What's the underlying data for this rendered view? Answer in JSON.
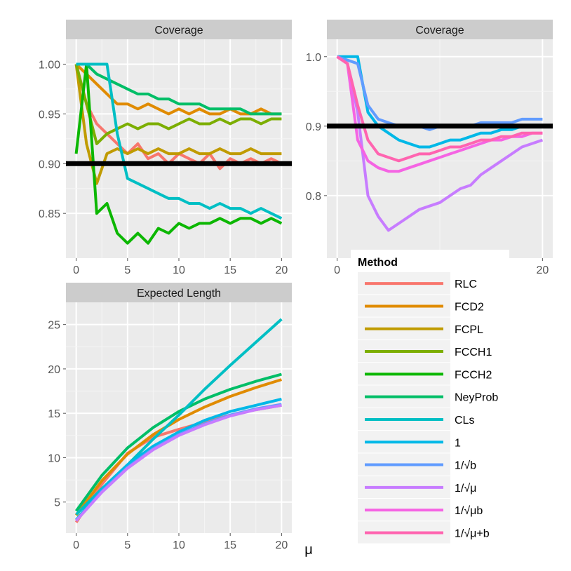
{
  "chart_data": [
    {
      "panel": "top-left",
      "type": "line",
      "title": "Coverage",
      "xlabel": "",
      "ylabel": "",
      "xlim": [
        -1,
        21
      ],
      "ylim": [
        0.805,
        1.025
      ],
      "xticks": [
        0,
        5,
        10,
        15,
        20
      ],
      "xtick_labels": [
        "0",
        "5",
        "10",
        "15",
        "20"
      ],
      "yticks": [
        0.85,
        0.9,
        0.95,
        1.0
      ],
      "ytick_labels": [
        "0.85",
        "0.90",
        "0.95",
        "1.00"
      ],
      "reference_line": 0.9,
      "grid": true,
      "series": [
        {
          "name": "RLC",
          "color": "#F8766D",
          "x": [
            0,
            1,
            2,
            3,
            4,
            5,
            6,
            7,
            8,
            9,
            10,
            11,
            12,
            13,
            14,
            15,
            16,
            17,
            18,
            19,
            20
          ],
          "y": [
            1.0,
            0.96,
            0.94,
            0.93,
            0.92,
            0.91,
            0.92,
            0.905,
            0.91,
            0.9,
            0.91,
            0.905,
            0.9,
            0.91,
            0.895,
            0.905,
            0.9,
            0.905,
            0.9,
            0.905,
            0.9
          ]
        },
        {
          "name": "FCD2",
          "color": "#E08B00",
          "x": [
            0,
            1,
            2,
            3,
            4,
            5,
            6,
            7,
            8,
            9,
            10,
            11,
            12,
            13,
            14,
            15,
            16,
            17,
            18,
            19,
            20
          ],
          "y": [
            1.0,
            0.99,
            0.98,
            0.97,
            0.96,
            0.96,
            0.955,
            0.96,
            0.955,
            0.95,
            0.955,
            0.95,
            0.955,
            0.95,
            0.95,
            0.955,
            0.95,
            0.95,
            0.955,
            0.95,
            0.95
          ]
        },
        {
          "name": "FCPL",
          "color": "#C09B00",
          "x": [
            0,
            1,
            2,
            3,
            4,
            5,
            6,
            7,
            8,
            9,
            10,
            11,
            12,
            13,
            14,
            15,
            16,
            17,
            18,
            19,
            20
          ],
          "y": [
            1.0,
            0.92,
            0.88,
            0.91,
            0.915,
            0.91,
            0.915,
            0.91,
            0.915,
            0.91,
            0.91,
            0.915,
            0.91,
            0.91,
            0.915,
            0.91,
            0.91,
            0.915,
            0.91,
            0.91,
            0.91
          ]
        },
        {
          "name": "FCCH1",
          "color": "#7CAE00",
          "x": [
            0,
            1,
            2,
            3,
            4,
            5,
            6,
            7,
            8,
            9,
            10,
            11,
            12,
            13,
            14,
            15,
            16,
            17,
            18,
            19,
            20
          ],
          "y": [
            1.0,
            0.96,
            0.92,
            0.93,
            0.935,
            0.94,
            0.935,
            0.94,
            0.94,
            0.935,
            0.94,
            0.945,
            0.94,
            0.94,
            0.945,
            0.94,
            0.945,
            0.945,
            0.94,
            0.945,
            0.945
          ]
        },
        {
          "name": "FCCH2",
          "color": "#0CB702",
          "x": [
            0,
            1,
            2,
            3,
            4,
            5,
            6,
            7,
            8,
            9,
            10,
            11,
            12,
            13,
            14,
            15,
            16,
            17,
            18,
            19,
            20
          ],
          "y": [
            0.91,
            1.0,
            0.85,
            0.86,
            0.83,
            0.82,
            0.83,
            0.82,
            0.835,
            0.83,
            0.84,
            0.835,
            0.84,
            0.84,
            0.845,
            0.84,
            0.845,
            0.845,
            0.84,
            0.845,
            0.84
          ]
        },
        {
          "name": "NeyProb",
          "color": "#00BE67",
          "x": [
            0,
            1,
            2,
            3,
            4,
            5,
            6,
            7,
            8,
            9,
            10,
            11,
            12,
            13,
            14,
            15,
            16,
            17,
            18,
            19,
            20
          ],
          "y": [
            1.0,
            1.0,
            0.99,
            0.985,
            0.98,
            0.975,
            0.97,
            0.97,
            0.965,
            0.965,
            0.96,
            0.96,
            0.96,
            0.955,
            0.955,
            0.955,
            0.955,
            0.95,
            0.95,
            0.95,
            0.95
          ]
        },
        {
          "name": "CLs",
          "color": "#00BFC4",
          "x": [
            0,
            1,
            2,
            3,
            4,
            5,
            6,
            7,
            8,
            9,
            10,
            11,
            12,
            13,
            14,
            15,
            16,
            17,
            18,
            19,
            20
          ],
          "y": [
            1.0,
            1.0,
            1.0,
            1.0,
            0.93,
            0.885,
            0.88,
            0.875,
            0.87,
            0.865,
            0.865,
            0.86,
            0.86,
            0.855,
            0.86,
            0.855,
            0.855,
            0.85,
            0.855,
            0.85,
            0.845
          ]
        }
      ]
    },
    {
      "panel": "top-right",
      "type": "line",
      "title": "Coverage",
      "xlabel": "",
      "ylabel": "",
      "xlim": [
        -1,
        21
      ],
      "ylim": [
        0.71,
        1.025
      ],
      "xticks": [
        0,
        20
      ],
      "xtick_labels": [
        "0",
        "20"
      ],
      "yticks": [
        0.8,
        0.9,
        1.0
      ],
      "ytick_labels": [
        "0.8",
        "0.9",
        "1.0"
      ],
      "reference_line": 0.9,
      "grid": true,
      "series": [
        {
          "name": "1",
          "color": "#00B8E7",
          "x": [
            0,
            1,
            2,
            3,
            4,
            5,
            6,
            7,
            8,
            9,
            10,
            11,
            12,
            13,
            14,
            15,
            16,
            17,
            18,
            19,
            20
          ],
          "y": [
            1.0,
            1.0,
            1.0,
            0.92,
            0.9,
            0.89,
            0.88,
            0.875,
            0.87,
            0.87,
            0.875,
            0.88,
            0.88,
            0.885,
            0.89,
            0.89,
            0.895,
            0.895,
            0.9,
            0.9,
            0.9
          ]
        },
        {
          "name": "1/√b",
          "color": "#619CFF",
          "x": [
            0,
            1,
            2,
            3,
            4,
            5,
            6,
            7,
            8,
            9,
            10,
            11,
            12,
            13,
            14,
            15,
            16,
            17,
            18,
            19,
            20
          ],
          "y": [
            1.0,
            0.995,
            0.99,
            0.93,
            0.91,
            0.905,
            0.9,
            0.9,
            0.9,
            0.895,
            0.9,
            0.9,
            0.9,
            0.9,
            0.905,
            0.905,
            0.905,
            0.905,
            0.91,
            0.91,
            0.91
          ]
        },
        {
          "name": "1/√μ",
          "color": "#C77CFF",
          "x": [
            0,
            1,
            2,
            3,
            4,
            5,
            6,
            7,
            8,
            9,
            10,
            11,
            12,
            13,
            14,
            15,
            16,
            17,
            18,
            19,
            20
          ],
          "y": [
            1.0,
            0.99,
            0.92,
            0.8,
            0.77,
            0.75,
            0.76,
            0.77,
            0.78,
            0.785,
            0.79,
            0.8,
            0.81,
            0.815,
            0.83,
            0.84,
            0.85,
            0.86,
            0.87,
            0.875,
            0.88
          ]
        },
        {
          "name": "1/√(μb)",
          "color": "#F564E3",
          "x": [
            0,
            1,
            2,
            3,
            4,
            5,
            6,
            7,
            8,
            9,
            10,
            11,
            12,
            13,
            14,
            15,
            16,
            17,
            18,
            19,
            20
          ],
          "y": [
            1.0,
            0.99,
            0.88,
            0.85,
            0.84,
            0.835,
            0.835,
            0.84,
            0.845,
            0.85,
            0.855,
            0.86,
            0.865,
            0.87,
            0.875,
            0.88,
            0.88,
            0.885,
            0.885,
            0.89,
            0.89
          ]
        },
        {
          "name": "1/√(μ+b)",
          "color": "#FF64B0",
          "x": [
            0,
            1,
            2,
            3,
            4,
            5,
            6,
            7,
            8,
            9,
            10,
            11,
            12,
            13,
            14,
            15,
            16,
            17,
            18,
            19,
            20
          ],
          "y": [
            1.0,
            0.99,
            0.93,
            0.88,
            0.86,
            0.855,
            0.85,
            0.855,
            0.86,
            0.86,
            0.865,
            0.87,
            0.87,
            0.875,
            0.88,
            0.88,
            0.885,
            0.885,
            0.89,
            0.89,
            0.89
          ]
        }
      ]
    },
    {
      "panel": "bottom-left",
      "type": "line",
      "title": "Expected Length",
      "xlabel": "μ",
      "ylabel": "",
      "xlim": [
        -1,
        21
      ],
      "ylim": [
        1.5,
        27.5
      ],
      "xticks": [
        0,
        5,
        10,
        15,
        20
      ],
      "xtick_labels": [
        "0",
        "5",
        "10",
        "15",
        "20"
      ],
      "yticks": [
        5,
        10,
        15,
        20,
        25
      ],
      "ytick_labels": [
        "5",
        "10",
        "15",
        "20",
        "25"
      ],
      "grid": true,
      "series": [
        {
          "name": "RLC",
          "color": "#F8766D",
          "x": [
            0,
            2.5,
            5,
            7.5,
            10,
            12.5,
            15,
            17.5,
            20
          ],
          "y": [
            2.7,
            7.0,
            10.5,
            12.3,
            13.2,
            14.0,
            14.8,
            15.4,
            15.9
          ]
        },
        {
          "name": "FCD2",
          "color": "#E08B00",
          "x": [
            0,
            2.5,
            5,
            7.5,
            10,
            12.5,
            15,
            17.5,
            20
          ],
          "y": [
            3.5,
            7.4,
            10.4,
            12.6,
            14.3,
            15.7,
            16.9,
            17.9,
            18.8
          ]
        },
        {
          "name": "NeyProb",
          "color": "#00BE67",
          "x": [
            0,
            2.5,
            5,
            7.5,
            10,
            12.5,
            15,
            17.5,
            20
          ],
          "y": [
            4.0,
            8.0,
            11.1,
            13.4,
            15.2,
            16.6,
            17.7,
            18.6,
            19.4
          ]
        },
        {
          "name": "CLs",
          "color": "#00BFC4",
          "x": [
            0,
            2.5,
            5,
            7.5,
            10,
            12.5,
            15,
            17.5,
            20
          ],
          "y": [
            3.6,
            6.5,
            9.2,
            12.1,
            14.8,
            17.7,
            20.4,
            23.0,
            25.6
          ]
        },
        {
          "name": "1",
          "color": "#00B8E7",
          "x": [
            0,
            2.5,
            5,
            7.5,
            10,
            12.5,
            15,
            17.5,
            20
          ],
          "y": [
            3.0,
            6.4,
            9.2,
            11.3,
            12.9,
            14.2,
            15.2,
            15.9,
            16.6
          ]
        },
        {
          "name": "1/√b",
          "color": "#619CFF",
          "x": [
            0,
            2.5,
            5,
            7.5,
            10,
            12.5,
            15,
            17.5,
            20
          ],
          "y": [
            2.9,
            6.2,
            8.9,
            11.0,
            12.6,
            13.8,
            14.8,
            15.5,
            16.0
          ]
        },
        {
          "name": "1/√μ",
          "color": "#C77CFF",
          "x": [
            0,
            2.5,
            5,
            7.5,
            10,
            12.5,
            15,
            17.5,
            20
          ],
          "y": [
            2.9,
            6.1,
            8.8,
            10.9,
            12.5,
            13.7,
            14.7,
            15.4,
            15.9
          ]
        }
      ]
    }
  ],
  "legend": {
    "title": "Method",
    "placement": "bottom-right",
    "entries": [
      {
        "label": "RLC",
        "color": "#F8766D"
      },
      {
        "label": "FCD2",
        "color": "#E08B00"
      },
      {
        "label": "FCPL",
        "color": "#C09B00"
      },
      {
        "label": "FCCH1",
        "color": "#7CAE00"
      },
      {
        "label": "FCCH2",
        "color": "#0CB702"
      },
      {
        "label": "NeyProb",
        "color": "#00BE67"
      },
      {
        "label": "CLs",
        "color": "#00BFC4"
      },
      {
        "label": "1",
        "color": "#00B8E7"
      },
      {
        "label": "1/√b",
        "color": "#619CFF"
      },
      {
        "label": "1/√μ",
        "color": "#C77CFF"
      },
      {
        "label": "1/√μb",
        "color": "#F564E3"
      },
      {
        "label": "1/√μ+b",
        "color": "#FF64B0"
      }
    ]
  }
}
